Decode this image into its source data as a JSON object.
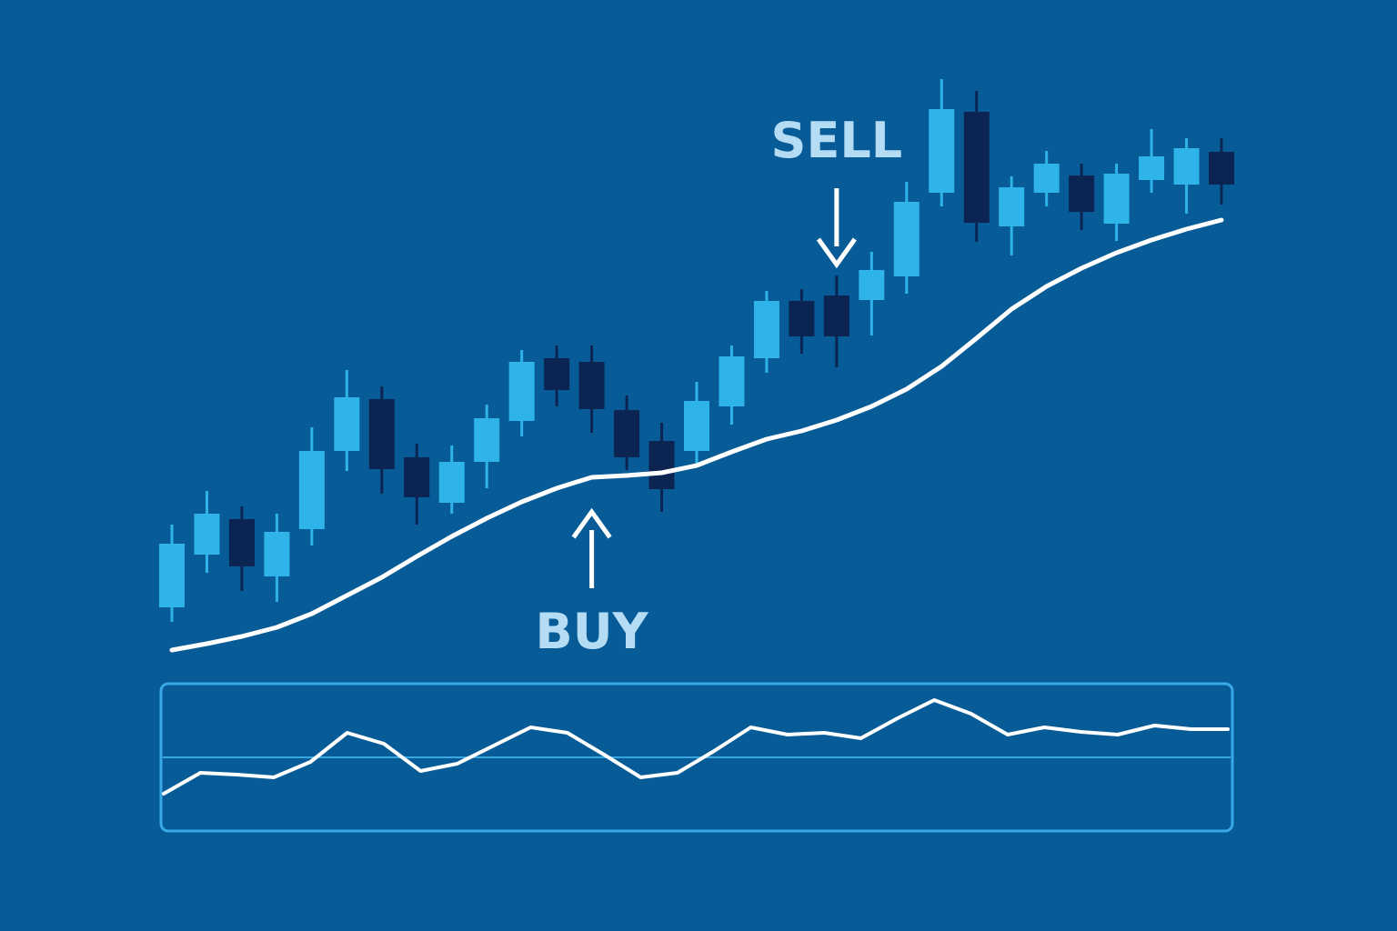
{
  "chart_data": [
    {
      "type": "candlestick",
      "categories": [
        null,
        null,
        null,
        null,
        null,
        null,
        null,
        null,
        null,
        null,
        null,
        null,
        null,
        null,
        null,
        null,
        null,
        null,
        null,
        null,
        null,
        null,
        null,
        null,
        null,
        null,
        null,
        null,
        null,
        null,
        null
      ],
      "open": [
        33.2,
        39.0,
        42.9,
        36.6,
        41.8,
        50.4,
        56.1,
        49.7,
        44.7,
        49.2,
        53.7,
        60.6,
        60.2,
        54.9,
        51.5,
        50.4,
        55.3,
        60.6,
        66.9,
        67.5,
        67.0,
        69.6,
        78.8,
        87.7,
        75.1,
        78.8,
        80.7,
        75.4,
        80.2,
        79.7,
        83.3
      ],
      "high": [
        42.3,
        46.0,
        44.3,
        43.5,
        53.0,
        59.3,
        57.5,
        51.2,
        51.0,
        55.5,
        61.5,
        62.0,
        62.0,
        56.5,
        53.5,
        58.0,
        62.0,
        68.0,
        68.2,
        69.7,
        72.3,
        80.0,
        91.3,
        90.0,
        80.6,
        83.4,
        82.0,
        82.0,
        85.8,
        84.8,
        84.8
      ],
      "low": [
        31.6,
        37.0,
        35.0,
        33.8,
        40.0,
        48.2,
        45.7,
        42.3,
        43.5,
        46.3,
        52.0,
        55.3,
        52.4,
        48.3,
        43.7,
        49.0,
        53.3,
        59.0,
        61.1,
        59.6,
        63.1,
        67.7,
        77.3,
        73.4,
        71.9,
        77.3,
        74.7,
        73.5,
        78.8,
        76.5,
        77.5
      ],
      "close": [
        40.2,
        43.5,
        37.7,
        41.5,
        50.4,
        56.3,
        48.4,
        45.3,
        49.2,
        54.0,
        60.2,
        57.1,
        55.0,
        49.7,
        46.2,
        55.9,
        60.8,
        66.9,
        63.0,
        63.0,
        70.3,
        77.8,
        88.0,
        75.5,
        79.4,
        82.0,
        76.7,
        80.9,
        82.8,
        83.7,
        79.7
      ],
      "up_color": "#2fb4ea",
      "down_color": "#0c2452",
      "moving_average": {
        "color": "#ffffff",
        "values": [
          28.5,
          29.2,
          30.0,
          31.0,
          32.5,
          34.5,
          36.5,
          38.8,
          41.0,
          43.0,
          44.8,
          46.3,
          47.5,
          47.7,
          48.0,
          48.8,
          50.3,
          51.7,
          52.6,
          53.8,
          55.3,
          57.2,
          59.7,
          62.8,
          66.0,
          68.5,
          70.5,
          72.2,
          73.6,
          74.8,
          75.8
        ]
      },
      "ylim": [
        0,
        100
      ],
      "annotations": [
        {
          "text": "SELL",
          "index": 19,
          "direction": "down"
        },
        {
          "text": "BUY",
          "index": 12,
          "direction": "up"
        }
      ]
    },
    {
      "type": "line",
      "values": [
        -40,
        -17,
        -19,
        -22,
        -5,
        27,
        15,
        -15,
        -7,
        13,
        33,
        27,
        3,
        -22,
        -17,
        7,
        33,
        25,
        27,
        21,
        43,
        63,
        48,
        25,
        33,
        28,
        25,
        35,
        31,
        31
      ],
      "color": "#ffffff",
      "ylim": [
        -81,
        81
      ],
      "reference": 0,
      "reference_color": "#3aa6e0"
    }
  ]
}
